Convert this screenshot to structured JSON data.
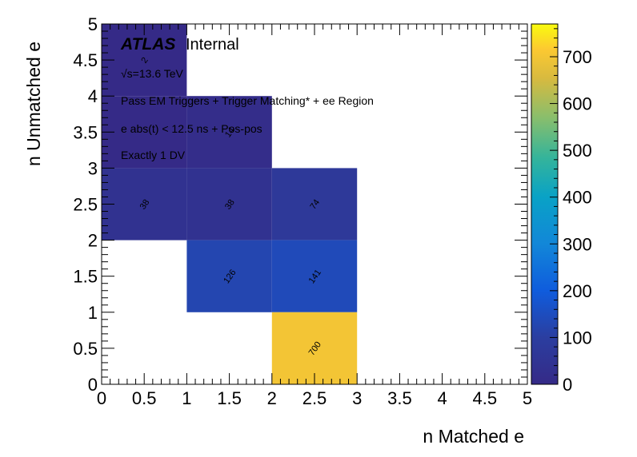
{
  "chart_data": {
    "type": "heatmap",
    "xlabel": "n Matched e",
    "ylabel": "n Unmatched e",
    "xlim": [
      0,
      5
    ],
    "ylim": [
      0,
      5
    ],
    "x_ticks": [
      "0",
      "0.5",
      "1",
      "1.5",
      "2",
      "2.5",
      "3",
      "3.5",
      "4",
      "4.5",
      "5"
    ],
    "y_ticks": [
      "0",
      "0.5",
      "1",
      "1.5",
      "2",
      "2.5",
      "3",
      "3.5",
      "4",
      "4.5",
      "5"
    ],
    "z_range": [
      0,
      770
    ],
    "colorbar_ticks": [
      "0",
      "100",
      "200",
      "300",
      "400",
      "500",
      "600",
      "700"
    ],
    "colormap": "viridis",
    "cells": [
      {
        "x": [
          0,
          1
        ],
        "y": [
          4,
          5
        ],
        "value": 2,
        "label": "2"
      },
      {
        "x": [
          0,
          1
        ],
        "y": [
          3,
          4
        ],
        "value": 2,
        "label": ""
      },
      {
        "x": [
          1,
          2
        ],
        "y": [
          3,
          4
        ],
        "value": 14,
        "label": "14"
      },
      {
        "x": [
          0,
          1
        ],
        "y": [
          2,
          3
        ],
        "value": 38,
        "label": "38"
      },
      {
        "x": [
          1,
          2
        ],
        "y": [
          2,
          3
        ],
        "value": 38,
        "label": "38"
      },
      {
        "x": [
          2,
          3
        ],
        "y": [
          2,
          3
        ],
        "value": 74,
        "label": "74"
      },
      {
        "x": [
          1,
          2
        ],
        "y": [
          1,
          2
        ],
        "value": 126,
        "label": "126"
      },
      {
        "x": [
          2,
          3
        ],
        "y": [
          1,
          2
        ],
        "value": 141,
        "label": "141"
      },
      {
        "x": [
          2,
          3
        ],
        "y": [
          0,
          1
        ],
        "value": 700,
        "label": "700"
      }
    ],
    "annotations": {
      "atlas": "ATLAS",
      "internal": "Internal",
      "energy": "√s=13.6 TeV",
      "line1": "Pass EM Triggers + Trigger Matching* + ee Region",
      "line2": "e abs(t) < 12.5 ns + Pos-pos",
      "line3": "Exactly 1 DV"
    },
    "grid": false
  }
}
